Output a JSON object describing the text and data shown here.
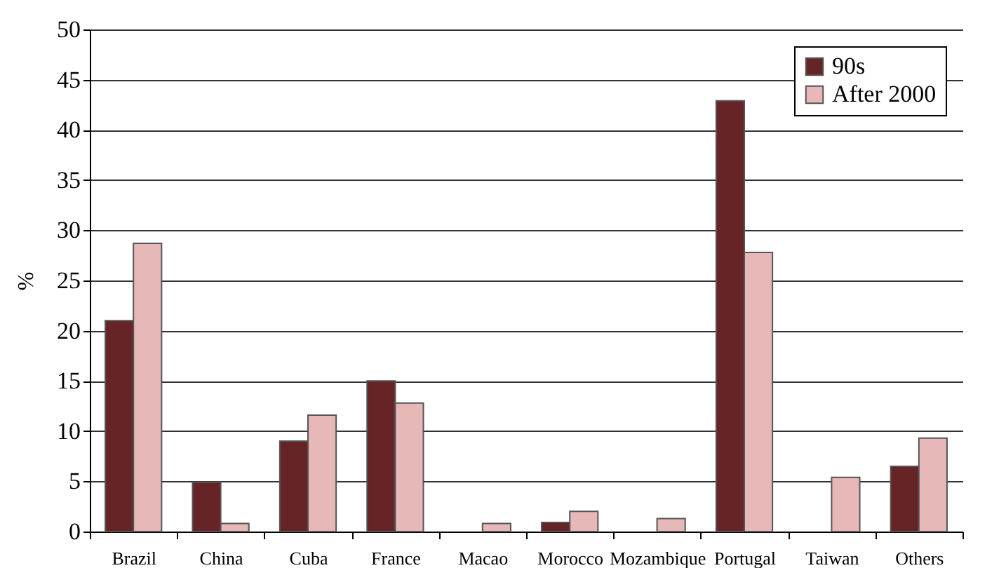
{
  "chart_data": {
    "type": "bar",
    "ylabel": "%",
    "categories": [
      "Brazil",
      "China",
      "Cuba",
      "France",
      "Macao",
      "Morocco",
      "Mozambique",
      "Portugal",
      "Taiwan",
      "Others"
    ],
    "series": [
      {
        "name": "90s",
        "color": "#662426",
        "values": [
          21,
          4.9,
          9,
          15,
          null,
          0.9,
          null,
          42.9,
          null,
          6.5
        ]
      },
      {
        "name": "After 2000",
        "color": "#e6b8b7",
        "values": [
          28.7,
          0.8,
          11.6,
          12.8,
          0.8,
          2,
          1.3,
          27.8,
          5.4,
          9.3
        ]
      }
    ],
    "ylim": [
      0,
      50
    ],
    "yticks": [
      0,
      5,
      10,
      15,
      20,
      25,
      30,
      35,
      40,
      45,
      50
    ],
    "grid": "y",
    "legend": "top right"
  }
}
